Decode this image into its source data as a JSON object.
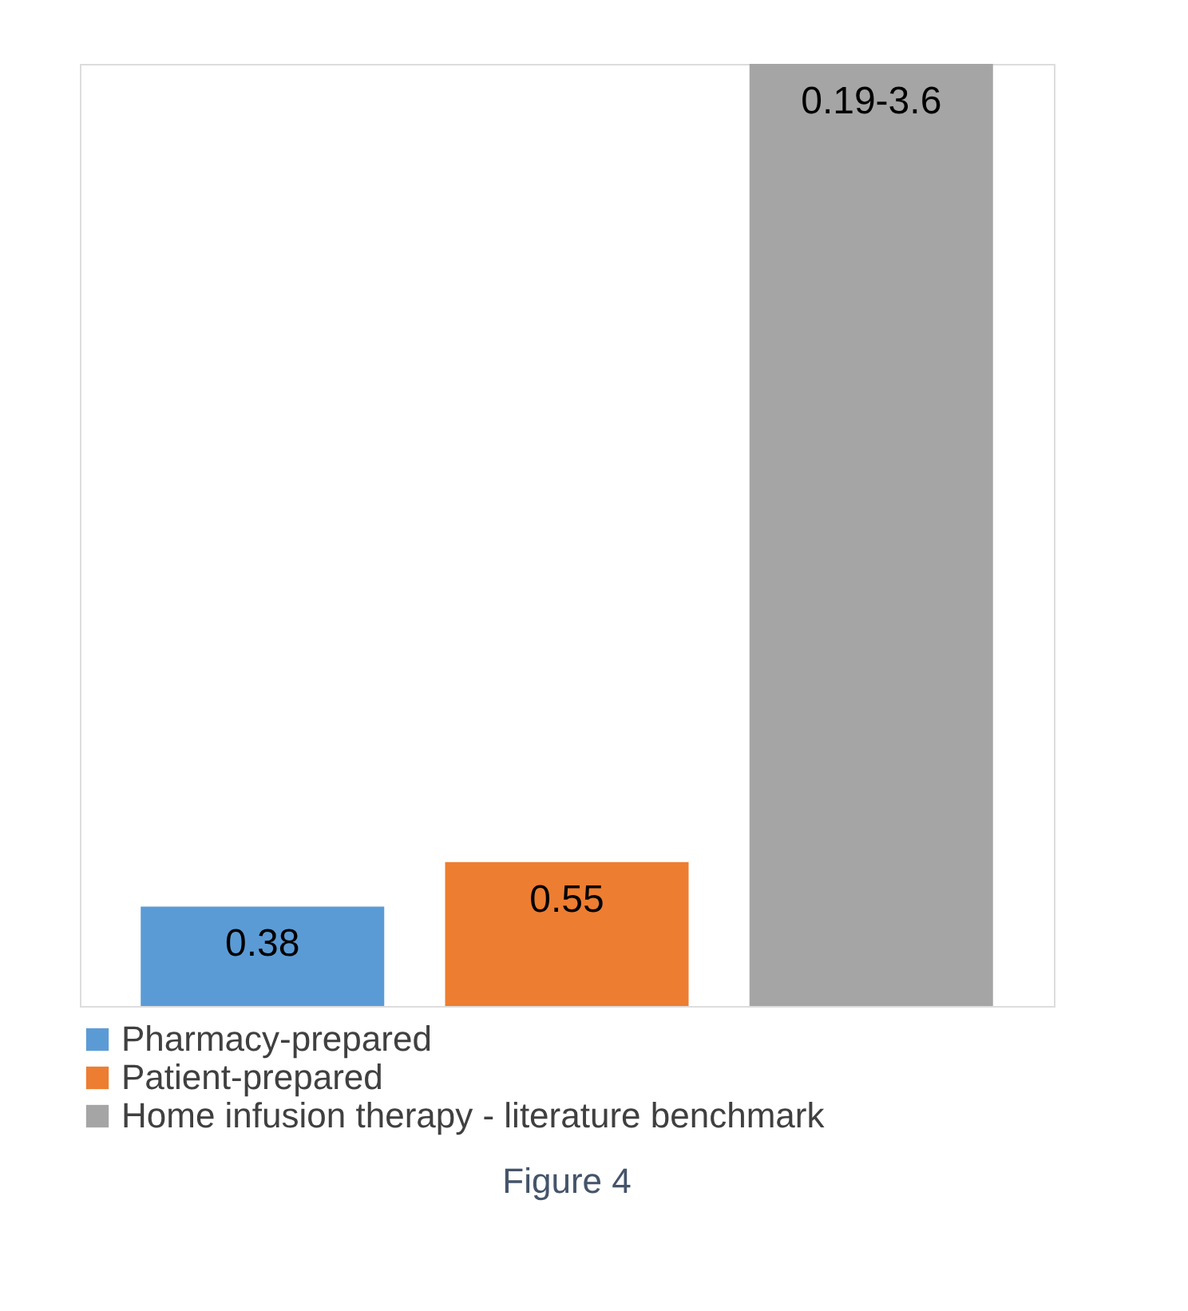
{
  "chart_data": {
    "type": "bar",
    "categories": [
      null
    ],
    "series": [
      {
        "name": "Pharmacy-prepared",
        "color": "#5b9bd5",
        "values": [
          0.38
        ],
        "value_labels": [
          "0.38"
        ]
      },
      {
        "name": "Patient-prepared",
        "color": "#ed7d31",
        "values": [
          0.55
        ],
        "value_labels": [
          "0.55"
        ]
      },
      {
        "name": "Home infusion therapy - literature benchmark",
        "color": "#a5a5a5",
        "values": [
          3.6
        ],
        "value_labels": [
          "0.19-3.6"
        ]
      }
    ],
    "legend": "bottom left",
    "tick_labels": false,
    "annotations": [
      "Figure 4"
    ]
  }
}
